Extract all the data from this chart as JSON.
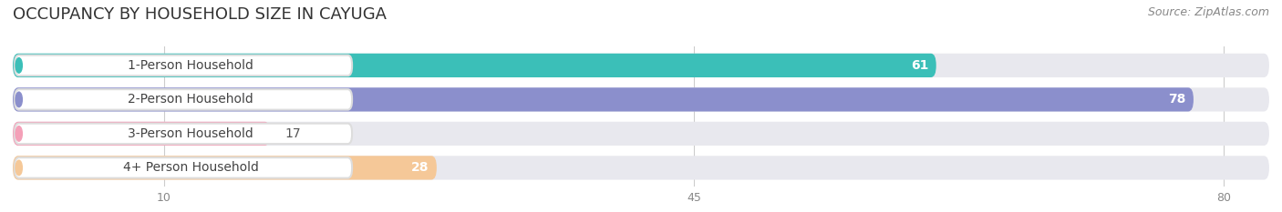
{
  "title": "OCCUPANCY BY HOUSEHOLD SIZE IN CAYUGA",
  "source": "Source: ZipAtlas.com",
  "categories": [
    "1-Person Household",
    "2-Person Household",
    "3-Person Household",
    "4+ Person Household"
  ],
  "values": [
    61,
    78,
    17,
    28
  ],
  "bar_colors": [
    "#3BBFB8",
    "#8B8FCC",
    "#F4A0B8",
    "#F5C898"
  ],
  "bg_color": "#ffffff",
  "bar_bg_color": "#e8e8ee",
  "x_ticks": [
    10,
    45,
    80
  ],
  "xlim_max": 83,
  "title_fontsize": 13,
  "source_fontsize": 9,
  "label_fontsize": 10,
  "value_fontsize": 10
}
